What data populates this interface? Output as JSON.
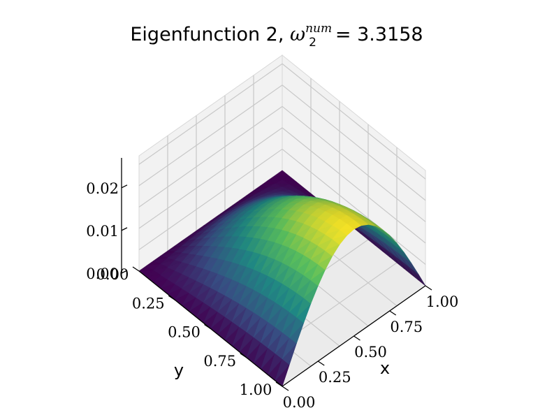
{
  "chart_data": {
    "type": "surface",
    "title_prefix": "Eigenfunction 2, ",
    "title_symbol": "ω",
    "title_subscript": "2",
    "title_superscript": "num",
    "title_value": "= 3.3158",
    "xlabel": "x",
    "ylabel": "y",
    "zlabel": "",
    "xlim": [
      0,
      1
    ],
    "ylim": [
      0,
      1
    ],
    "zlim": [
      0,
      0.027
    ],
    "view": {
      "elevation_deg": 45,
      "azimuth_deg": 45
    },
    "grid": true,
    "colormap": "viridis",
    "x_ticks": [
      0.0,
      0.25,
      0.5,
      0.75,
      1.0
    ],
    "x_tick_labels": [
      "0.00",
      "0.25",
      "0.50",
      "0.75",
      "1.00"
    ],
    "y_ticks": [
      0.0,
      0.25,
      0.5,
      0.75,
      1.0
    ],
    "y_tick_labels": [
      "0.00",
      "0.25",
      "0.50",
      "0.75",
      "1.00"
    ],
    "z_ticks": [
      0.0,
      0.01,
      0.02
    ],
    "z_tick_labels": [
      "0.00",
      "0.01",
      "0.02"
    ],
    "surface": {
      "description_function": "z = A * sin(pi*x) * sin(pi*y/2)",
      "amplitude": 0.025,
      "mesh_resolution": 20
    },
    "colormap_stops": [
      "#440154",
      "#3b528b",
      "#21918c",
      "#5ec962",
      "#fde725"
    ]
  }
}
